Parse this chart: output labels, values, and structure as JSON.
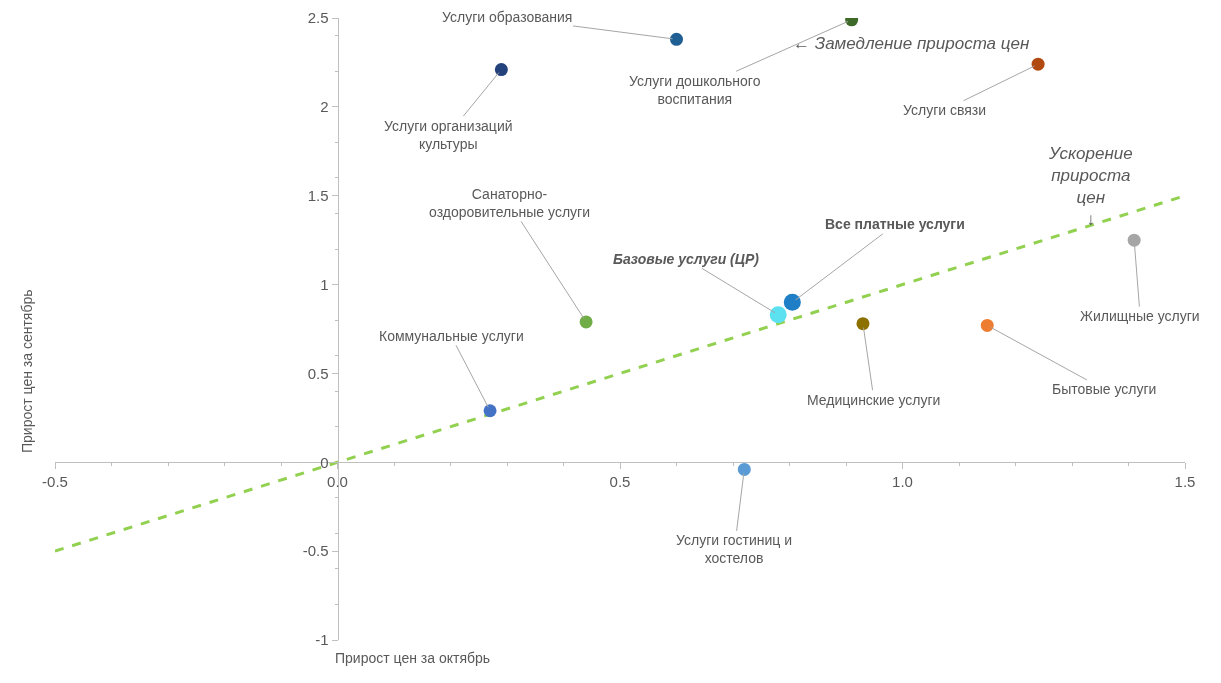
{
  "chart_data": {
    "type": "scatter",
    "xlabel": "Прирост цен за октябрь",
    "ylabel": "Прирост цен за сентябрь",
    "xlim": [
      -0.5,
      1.5
    ],
    "xticks": [
      -0.5,
      {
        "value": 0,
        "label": "0.0"
      },
      0.5,
      {
        "value": 1,
        "label": "1.0"
      },
      1.5
    ],
    "ylim": [
      -1,
      2.5
    ],
    "yticks": [
      -1,
      -0.5,
      0,
      0.5,
      1,
      1.5,
      2,
      2.5
    ],
    "grid": false,
    "legend": false,
    "marker": "circle",
    "annotations": [
      "← Замедление прироста цен",
      "Ускорение\nприроста\nцен\n↓"
    ],
    "series": [
      {
        "name": "Услуги образования",
        "color": "#1f5f94",
        "x": [
          0.6
        ],
        "values": [
          2.38
        ]
      },
      {
        "name": "Услуги организаций\nкультуры",
        "color": "#23417a",
        "x": [
          0.29
        ],
        "values": [
          2.21
        ]
      },
      {
        "name": "Услуги дошкольного\nвоспитания",
        "color": "#3e6b2a",
        "x": [
          0.91
        ],
        "values": [
          2.49
        ]
      },
      {
        "name": "Услуги связи",
        "color": "#b04a10",
        "x": [
          1.24
        ],
        "values": [
          2.24
        ]
      },
      {
        "name": "Жилищные услуги",
        "color": "#a6a6a6",
        "x": [
          1.41
        ],
        "values": [
          1.25
        ]
      },
      {
        "name": "Все платные услуги",
        "color": "#1f7fc6",
        "x": [
          0.805
        ],
        "values": [
          0.9
        ]
      },
      {
        "name": "Базовые услуги (ЦР)",
        "color": "#5ce1f0",
        "x": [
          0.78
        ],
        "values": [
          0.83
        ]
      },
      {
        "name": "Санаторно-\nоздоровительные услуги",
        "color": "#70ad47",
        "x": [
          0.44
        ],
        "values": [
          0.79
        ]
      },
      {
        "name": "Медицинские услуги",
        "color": "#8c7000",
        "x": [
          0.93
        ],
        "values": [
          0.78
        ]
      },
      {
        "name": "Бытовые услуги",
        "color": "#ed7d31",
        "x": [
          1.15
        ],
        "values": [
          0.77
        ]
      },
      {
        "name": "Коммунальные услуги",
        "color": "#4472c4",
        "x": [
          0.27
        ],
        "values": [
          0.29
        ]
      },
      {
        "name": "Услуги гостиниц и\nхостелов",
        "color": "#5b9bd5",
        "x": [
          0.72
        ],
        "values": [
          -0.04
        ]
      },
      {
        "type": "line",
        "color": "#92d050",
        "line_style": "dashed",
        "marker": "none",
        "x": [
          -0.5,
          1.5
        ],
        "values": [
          -0.5,
          1.5
        ]
      }
    ]
  }
}
